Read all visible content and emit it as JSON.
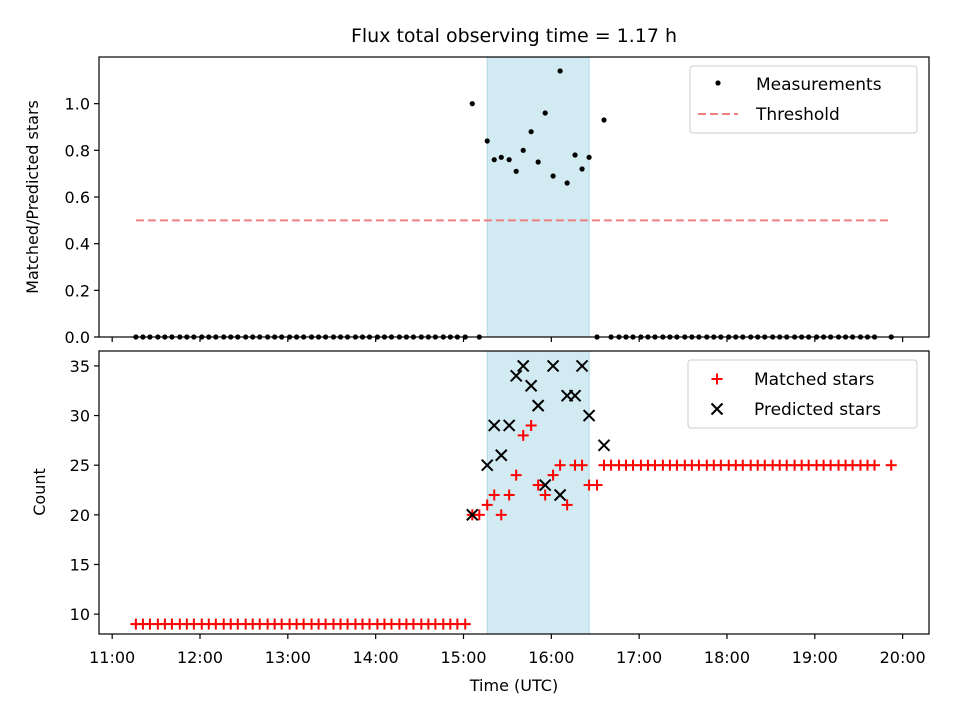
{
  "title": "Flux total observing time = 1.17 h",
  "x_axis": {
    "label": "Time (UTC)",
    "ticks": [
      {
        "value": 11.0,
        "label": "11:00"
      },
      {
        "value": 12.0,
        "label": "12:00"
      },
      {
        "value": 13.0,
        "label": "13:00"
      },
      {
        "value": 14.0,
        "label": "14:00"
      },
      {
        "value": 15.0,
        "label": "15:00"
      },
      {
        "value": 16.0,
        "label": "16:00"
      },
      {
        "value": 17.0,
        "label": "17:00"
      },
      {
        "value": 18.0,
        "label": "18:00"
      },
      {
        "value": 19.0,
        "label": "19:00"
      },
      {
        "value": 20.0,
        "label": "20:00"
      }
    ],
    "range": [
      10.85,
      20.3
    ]
  },
  "colors": {
    "measurements": "#000000",
    "threshold": "#f08080",
    "matched": "#ff0000",
    "predicted": "#000000",
    "observing_span": "#add8e6"
  },
  "chart_data": [
    {
      "type": "scatter",
      "panel": "top",
      "ylabel": "Matched/Predicted stars",
      "ylim": [
        0,
        1.2
      ],
      "yticks": [
        0.0,
        0.2,
        0.4,
        0.6,
        0.8,
        1.0
      ],
      "ytick_labels": [
        "0.0",
        "0.2",
        "0.4",
        "0.6",
        "0.8",
        "1.0"
      ],
      "legend": {
        "position": "top-right",
        "entries": [
          "Measurements",
          "Threshold"
        ]
      },
      "highlight_span": {
        "start": 15.27,
        "end": 16.43
      },
      "threshold": {
        "name": "Threshold",
        "y": 0.5,
        "x": [
          11.27,
          19.87
        ]
      },
      "series": [
        {
          "name": "Measurements",
          "points": [
            [
              11.27,
              0
            ],
            [
              11.35,
              0
            ],
            [
              11.43,
              0
            ],
            [
              11.52,
              0
            ],
            [
              11.6,
              0
            ],
            [
              11.68,
              0
            ],
            [
              11.77,
              0
            ],
            [
              11.85,
              0
            ],
            [
              11.93,
              0
            ],
            [
              12.02,
              0
            ],
            [
              12.1,
              0
            ],
            [
              12.18,
              0
            ],
            [
              12.27,
              0
            ],
            [
              12.35,
              0
            ],
            [
              12.43,
              0
            ],
            [
              12.52,
              0
            ],
            [
              12.6,
              0
            ],
            [
              12.68,
              0
            ],
            [
              12.77,
              0
            ],
            [
              12.85,
              0
            ],
            [
              12.93,
              0
            ],
            [
              13.02,
              0
            ],
            [
              13.1,
              0
            ],
            [
              13.18,
              0
            ],
            [
              13.27,
              0
            ],
            [
              13.35,
              0
            ],
            [
              13.43,
              0
            ],
            [
              13.52,
              0
            ],
            [
              13.6,
              0
            ],
            [
              13.68,
              0
            ],
            [
              13.77,
              0
            ],
            [
              13.85,
              0
            ],
            [
              13.93,
              0
            ],
            [
              14.02,
              0
            ],
            [
              14.1,
              0
            ],
            [
              14.18,
              0
            ],
            [
              14.27,
              0
            ],
            [
              14.35,
              0
            ],
            [
              14.43,
              0
            ],
            [
              14.52,
              0
            ],
            [
              14.6,
              0
            ],
            [
              14.68,
              0
            ],
            [
              14.77,
              0
            ],
            [
              14.85,
              0
            ],
            [
              14.93,
              0
            ],
            [
              15.02,
              0
            ],
            [
              15.1,
              1.0
            ],
            [
              15.18,
              0
            ],
            [
              15.27,
              0.84
            ],
            [
              15.35,
              0.76
            ],
            [
              15.43,
              0.77
            ],
            [
              15.52,
              0.76
            ],
            [
              15.6,
              0.71
            ],
            [
              15.68,
              0.8
            ],
            [
              15.77,
              0.88
            ],
            [
              15.85,
              0.75
            ],
            [
              15.93,
              0.96
            ],
            [
              16.02,
              0.69
            ],
            [
              16.1,
              1.14
            ],
            [
              16.18,
              0.66
            ],
            [
              16.27,
              0.78
            ],
            [
              16.35,
              0.72
            ],
            [
              16.43,
              0.77
            ],
            [
              16.52,
              0
            ],
            [
              16.6,
              0.93
            ],
            [
              16.68,
              0
            ],
            [
              16.77,
              0
            ],
            [
              16.85,
              0
            ],
            [
              16.93,
              0
            ],
            [
              17.02,
              0
            ],
            [
              17.1,
              0
            ],
            [
              17.18,
              0
            ],
            [
              17.27,
              0
            ],
            [
              17.35,
              0
            ],
            [
              17.43,
              0
            ],
            [
              17.52,
              0
            ],
            [
              17.6,
              0
            ],
            [
              17.68,
              0
            ],
            [
              17.77,
              0
            ],
            [
              17.85,
              0
            ],
            [
              17.93,
              0
            ],
            [
              18.02,
              0
            ],
            [
              18.1,
              0
            ],
            [
              18.18,
              0
            ],
            [
              18.27,
              0
            ],
            [
              18.35,
              0
            ],
            [
              18.43,
              0
            ],
            [
              18.52,
              0
            ],
            [
              18.6,
              0
            ],
            [
              18.68,
              0
            ],
            [
              18.77,
              0
            ],
            [
              18.85,
              0
            ],
            [
              18.93,
              0
            ],
            [
              19.02,
              0
            ],
            [
              19.1,
              0
            ],
            [
              19.18,
              0
            ],
            [
              19.27,
              0
            ],
            [
              19.35,
              0
            ],
            [
              19.43,
              0
            ],
            [
              19.52,
              0
            ],
            [
              19.6,
              0
            ],
            [
              19.68,
              0
            ],
            [
              19.87,
              0
            ]
          ]
        }
      ]
    },
    {
      "type": "scatter",
      "panel": "bottom",
      "ylabel": "Count",
      "xlabel": "Time (UTC)",
      "ylim": [
        8,
        36.5
      ],
      "yticks": [
        10,
        15,
        20,
        25,
        30,
        35
      ],
      "ytick_labels": [
        "10",
        "15",
        "20",
        "25",
        "30",
        "35"
      ],
      "legend": {
        "position": "top-right",
        "entries": [
          "Matched stars",
          "Predicted stars"
        ]
      },
      "highlight_span": {
        "start": 15.27,
        "end": 16.43
      },
      "series": [
        {
          "name": "Matched stars",
          "marker": "plus",
          "points": [
            [
              11.27,
              9
            ],
            [
              11.35,
              9
            ],
            [
              11.43,
              9
            ],
            [
              11.52,
              9
            ],
            [
              11.6,
              9
            ],
            [
              11.68,
              9
            ],
            [
              11.77,
              9
            ],
            [
              11.85,
              9
            ],
            [
              11.93,
              9
            ],
            [
              12.02,
              9
            ],
            [
              12.1,
              9
            ],
            [
              12.18,
              9
            ],
            [
              12.27,
              9
            ],
            [
              12.35,
              9
            ],
            [
              12.43,
              9
            ],
            [
              12.52,
              9
            ],
            [
              12.6,
              9
            ],
            [
              12.68,
              9
            ],
            [
              12.77,
              9
            ],
            [
              12.85,
              9
            ],
            [
              12.93,
              9
            ],
            [
              13.02,
              9
            ],
            [
              13.1,
              9
            ],
            [
              13.18,
              9
            ],
            [
              13.27,
              9
            ],
            [
              13.35,
              9
            ],
            [
              13.43,
              9
            ],
            [
              13.52,
              9
            ],
            [
              13.6,
              9
            ],
            [
              13.68,
              9
            ],
            [
              13.77,
              9
            ],
            [
              13.85,
              9
            ],
            [
              13.93,
              9
            ],
            [
              14.02,
              9
            ],
            [
              14.1,
              9
            ],
            [
              14.18,
              9
            ],
            [
              14.27,
              9
            ],
            [
              14.35,
              9
            ],
            [
              14.43,
              9
            ],
            [
              14.52,
              9
            ],
            [
              14.6,
              9
            ],
            [
              14.68,
              9
            ],
            [
              14.77,
              9
            ],
            [
              14.85,
              9
            ],
            [
              14.93,
              9
            ],
            [
              15.02,
              9
            ],
            [
              15.1,
              20
            ],
            [
              15.18,
              20
            ],
            [
              15.27,
              21
            ],
            [
              15.35,
              22
            ],
            [
              15.43,
              20
            ],
            [
              15.52,
              22
            ],
            [
              15.6,
              24
            ],
            [
              15.68,
              28
            ],
            [
              15.77,
              29
            ],
            [
              15.85,
              23
            ],
            [
              15.93,
              22
            ],
            [
              16.02,
              24
            ],
            [
              16.1,
              25
            ],
            [
              16.18,
              21
            ],
            [
              16.27,
              25
            ],
            [
              16.35,
              25
            ],
            [
              16.43,
              23
            ],
            [
              16.52,
              23
            ],
            [
              16.6,
              25
            ],
            [
              16.68,
              25
            ],
            [
              16.77,
              25
            ],
            [
              16.85,
              25
            ],
            [
              16.93,
              25
            ],
            [
              17.02,
              25
            ],
            [
              17.1,
              25
            ],
            [
              17.18,
              25
            ],
            [
              17.27,
              25
            ],
            [
              17.35,
              25
            ],
            [
              17.43,
              25
            ],
            [
              17.52,
              25
            ],
            [
              17.6,
              25
            ],
            [
              17.68,
              25
            ],
            [
              17.77,
              25
            ],
            [
              17.85,
              25
            ],
            [
              17.93,
              25
            ],
            [
              18.02,
              25
            ],
            [
              18.1,
              25
            ],
            [
              18.18,
              25
            ],
            [
              18.27,
              25
            ],
            [
              18.35,
              25
            ],
            [
              18.43,
              25
            ],
            [
              18.52,
              25
            ],
            [
              18.6,
              25
            ],
            [
              18.68,
              25
            ],
            [
              18.77,
              25
            ],
            [
              18.85,
              25
            ],
            [
              18.93,
              25
            ],
            [
              19.02,
              25
            ],
            [
              19.1,
              25
            ],
            [
              19.18,
              25
            ],
            [
              19.27,
              25
            ],
            [
              19.35,
              25
            ],
            [
              19.43,
              25
            ],
            [
              19.52,
              25
            ],
            [
              19.6,
              25
            ],
            [
              19.68,
              25
            ],
            [
              19.87,
              25
            ]
          ]
        },
        {
          "name": "Predicted stars",
          "marker": "x",
          "points": [
            [
              15.1,
              20
            ],
            [
              15.27,
              25
            ],
            [
              15.35,
              29
            ],
            [
              15.43,
              26
            ],
            [
              15.52,
              29
            ],
            [
              15.6,
              34
            ],
            [
              15.68,
              35
            ],
            [
              15.77,
              33
            ],
            [
              15.85,
              31
            ],
            [
              15.93,
              23
            ],
            [
              16.02,
              35
            ],
            [
              16.1,
              22
            ],
            [
              16.18,
              32
            ],
            [
              16.27,
              32
            ],
            [
              16.35,
              35
            ],
            [
              16.43,
              30
            ],
            [
              16.6,
              27
            ]
          ]
        }
      ]
    }
  ]
}
